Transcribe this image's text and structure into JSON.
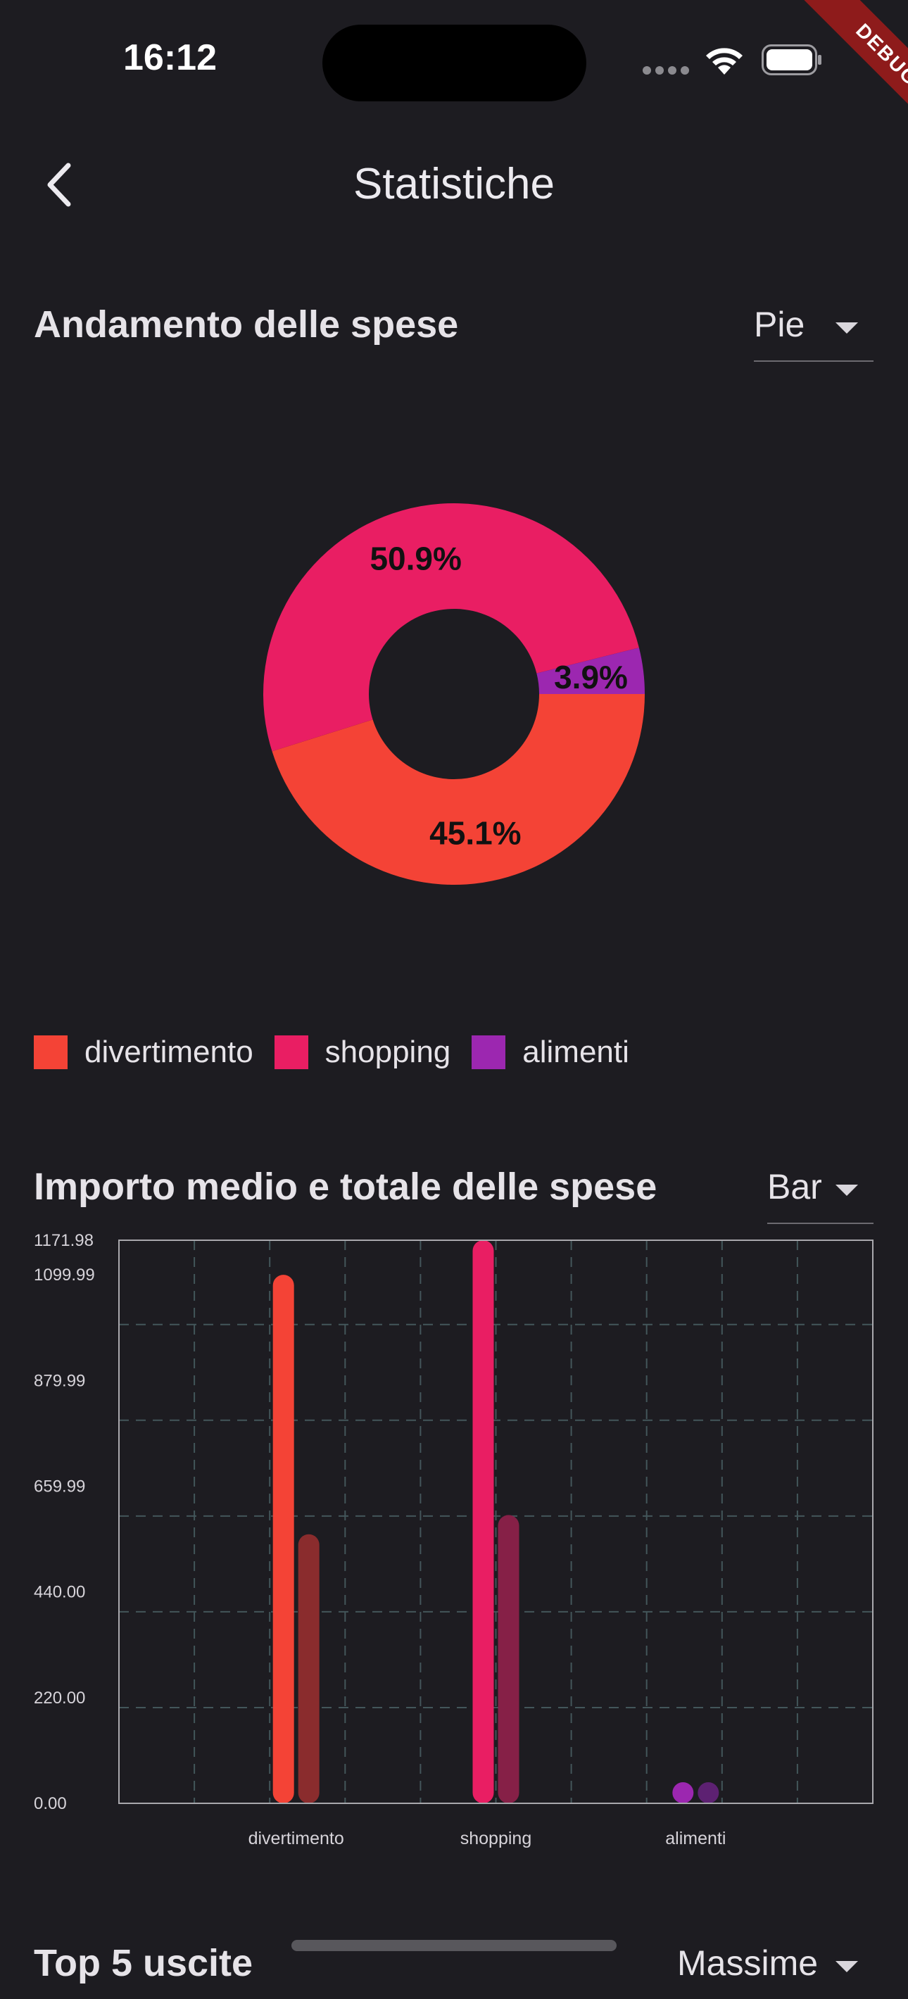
{
  "status_bar": {
    "time": "16:12",
    "debug_label": "DEBUG"
  },
  "app_bar": {
    "title": "Statistiche",
    "back_icon": "chevron-left-icon"
  },
  "pie_section": {
    "title": "Andamento delle spese",
    "dropdown_value": "Pie"
  },
  "bar_section": {
    "title": "Importo medio e totale delle spese",
    "dropdown_value": "Bar"
  },
  "top_section": {
    "title": "Top 5 uscite",
    "dropdown_value": "Massime"
  },
  "colors": {
    "background": "#1d1c21",
    "divertimento": "#f44336",
    "shopping": "#e91e63",
    "alimenti": "#9c27b0",
    "grid": "#43565a",
    "border": "#a9a8ad"
  },
  "legend": [
    {
      "label": "divertimento",
      "color": "#f44336"
    },
    {
      "label": "shopping",
      "color": "#e91e63"
    },
    {
      "label": "alimenti",
      "color": "#9c27b0"
    }
  ],
  "chart_data": [
    {
      "type": "pie",
      "categories": [
        "divertimento",
        "shopping",
        "alimenti"
      ],
      "values": [
        45.1,
        50.9,
        3.9
      ],
      "labels": [
        "45.1%",
        "50.9%",
        "3.9%"
      ],
      "colors": [
        "#f44336",
        "#e91e63",
        "#9c27b0"
      ],
      "donut": true,
      "legend": "bottom-left"
    },
    {
      "type": "bar",
      "categories": [
        "divertimento",
        "shopping",
        "alimenti"
      ],
      "series": [
        {
          "values": [
            1100,
            1171.98,
            20
          ],
          "colors": [
            "#f44336",
            "#e91e63",
            "#9c27b0"
          ]
        },
        {
          "values": [
            560,
            600,
            20
          ],
          "colors": [
            "#8a2c2d",
            "#862047",
            "#5d2172"
          ]
        }
      ],
      "ytick_labels": [
        "0.00",
        "220.00",
        "440.00",
        "659.99",
        "879.99",
        "1099.99",
        "1171.98"
      ],
      "ytick_values": [
        0,
        220,
        440,
        659.99,
        879.99,
        1099.99,
        1171.98
      ],
      "ylim": [
        0,
        1171.98
      ],
      "grid": true
    }
  ]
}
